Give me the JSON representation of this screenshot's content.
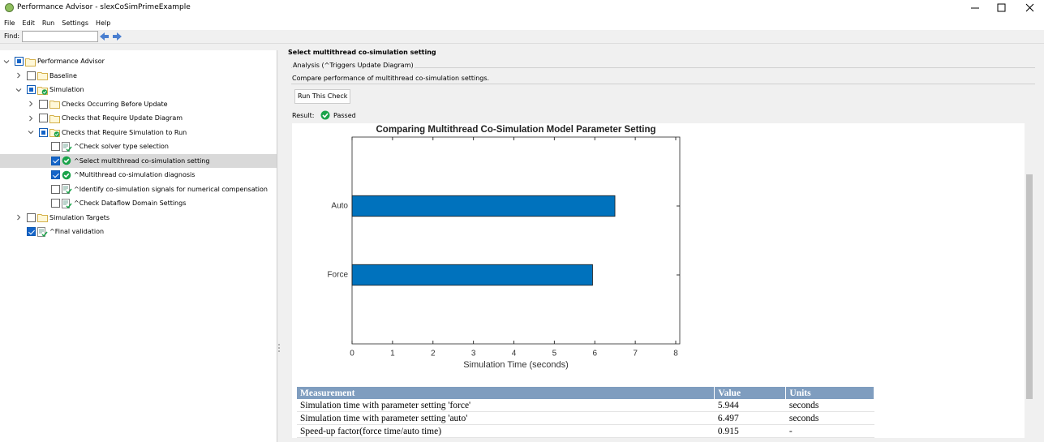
{
  "window": {
    "title": "Performance Advisor - slexCoSimPrimeExample"
  },
  "menu": [
    "File",
    "Edit",
    "Run",
    "Settings",
    "Help"
  ],
  "find_label": "Find:",
  "tree": [
    {
      "label": "Performance Advisor",
      "check": "mixed",
      "icon": "folder",
      "expanded": true,
      "children": [
        {
          "label": "Baseline",
          "check": "unchecked",
          "icon": "folder",
          "expanded": false
        },
        {
          "label": "Simulation",
          "check": "mixed",
          "icon": "folder-passed",
          "expanded": true,
          "children": [
            {
              "label": "Checks Occurring Before Update",
              "check": "unchecked",
              "icon": "folder",
              "expanded": false
            },
            {
              "label": "Checks that Require Update Diagram",
              "check": "unchecked",
              "icon": "folder",
              "expanded": false
            },
            {
              "label": "Checks that Require Simulation to Run",
              "check": "mixed",
              "icon": "folder-passed",
              "expanded": true,
              "children": [
                {
                  "label": "^Check solver type selection",
                  "check": "unchecked",
                  "icon": "task"
                },
                {
                  "label": "^Select multithread co-simulation setting",
                  "check": "checked",
                  "icon": "passed",
                  "selected": true
                },
                {
                  "label": "^Multithread co-simulation diagnosis",
                  "check": "checked",
                  "icon": "passed"
                },
                {
                  "label": "^Identify co-simulation signals for numerical compensation",
                  "check": "unchecked",
                  "icon": "task"
                },
                {
                  "label": "^Check Dataflow Domain Settings",
                  "check": "unchecked",
                  "icon": "task"
                }
              ]
            }
          ]
        },
        {
          "label": "Simulation Targets",
          "check": "unchecked",
          "icon": "folder",
          "expanded": false
        },
        {
          "label": "^Final validation",
          "check": "checked",
          "icon": "task"
        }
      ]
    }
  ],
  "detail": {
    "heading": "Select multithread co-simulation setting",
    "group_label": "Analysis (^Triggers Update Diagram)",
    "description": "Compare performance of multithread co-simulation settings.",
    "button": "Run This Check",
    "result_label": "Result:",
    "result": "Passed"
  },
  "chart_data": {
    "type": "barh",
    "title": "Comparing Multithread Co-Simulation Model Parameter Setting",
    "categories": [
      "Auto",
      "Force"
    ],
    "values": [
      6.497,
      5.944
    ],
    "color": "#0072bd",
    "xlabel": "Simulation Time (seconds)",
    "xlim": [
      0,
      8.1
    ],
    "xticks": [
      0,
      1,
      2,
      3,
      4,
      5,
      6,
      7,
      8
    ]
  },
  "table": {
    "header": [
      "Measurement",
      "Value",
      "Units"
    ],
    "rows": [
      [
        "Simulation time with parameter setting 'force'",
        5.944,
        "seconds"
      ],
      [
        "Simulation time with parameter setting 'auto'",
        6.497,
        "seconds"
      ],
      [
        "Speed-up factor(force time/auto time)",
        0.915,
        "-"
      ]
    ]
  }
}
